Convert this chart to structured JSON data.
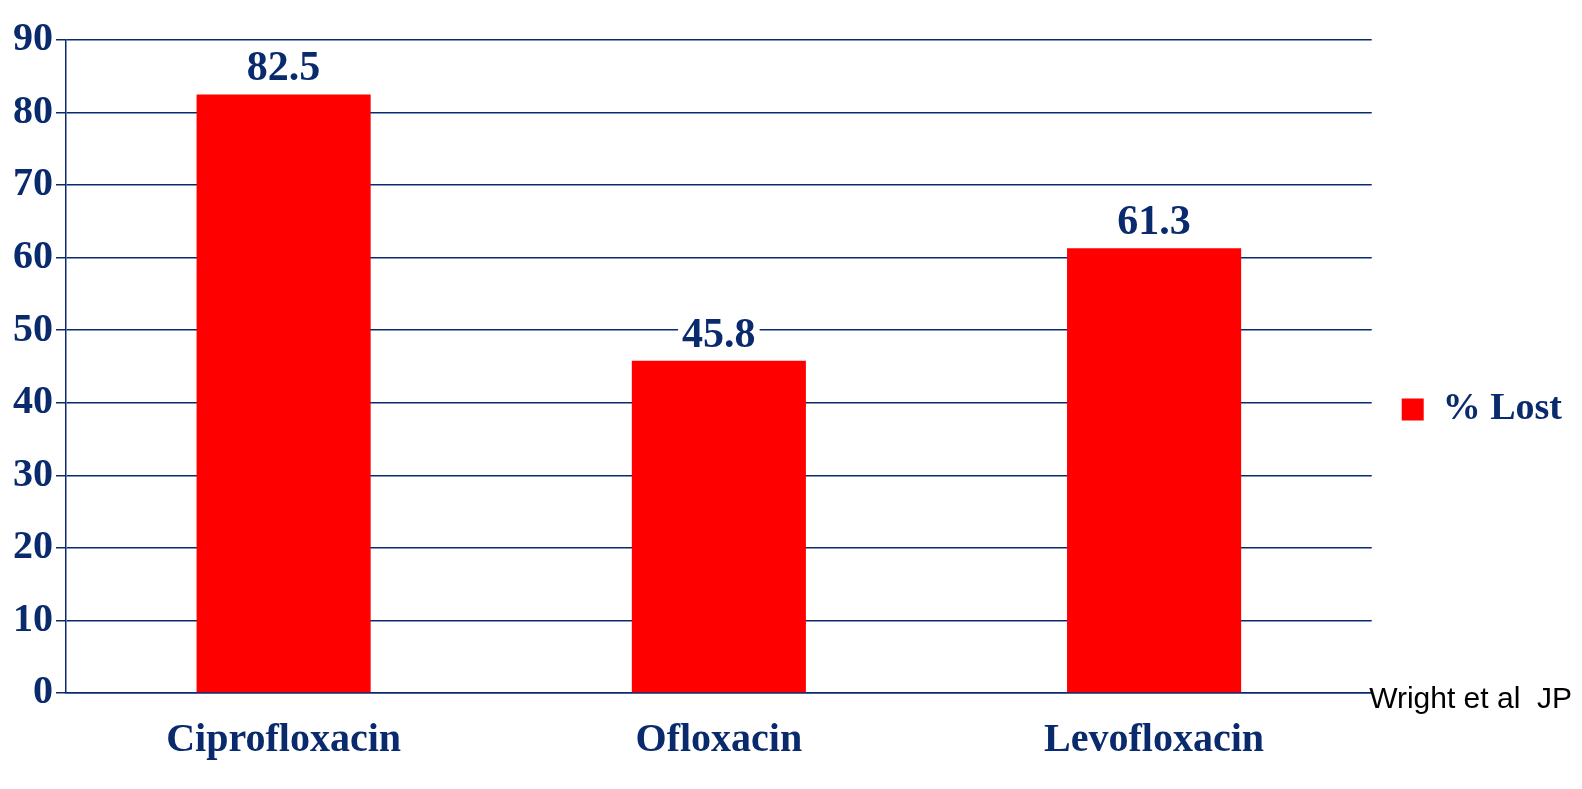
{
  "chart_data": {
    "type": "bar",
    "categories": [
      "Ciprofloxacin",
      "Ofloxacin",
      "Levofloxacin"
    ],
    "series": [
      {
        "name": "% Lost",
        "color": "#ff0000",
        "values": [
          82.5,
          45.8,
          61.3
        ]
      }
    ],
    "ylim": [
      0,
      90
    ],
    "yticks": [
      0,
      10,
      20,
      30,
      40,
      50,
      60,
      70,
      80,
      90
    ],
    "grid": "y",
    "legend": "right",
    "data_labels": true,
    "annotations": [
      "Wright et al  JP"
    ]
  }
}
